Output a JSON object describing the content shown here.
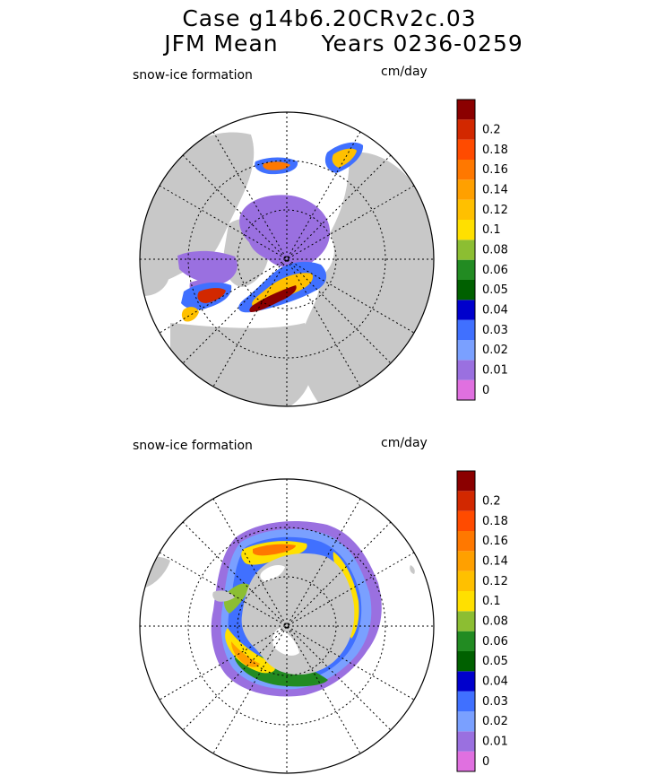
{
  "header": {
    "line1": "Case g14b6.20CRv2c.03",
    "line2_left": "JFM Mean",
    "line2_right": "Years 0236-0259"
  },
  "colors": {
    "land": "#c8c8c8",
    "levels": [
      "#e070e0",
      "#9a70e0",
      "#7aa0ff",
      "#4070ff",
      "#0000cc",
      "#006000",
      "#228b22",
      "#8cbe32",
      "#ffe000",
      "#ffc000",
      "#ffa000",
      "#ff7800",
      "#ff4b00",
      "#d22800",
      "#8b0000"
    ]
  },
  "chart_data": [
    {
      "type": "heatmap",
      "projection": "north-polar-stereographic",
      "title": "snow-ice formation",
      "units": "cm/day",
      "colorbar_levels": [
        "0",
        "0.01",
        "0.02",
        "0.03",
        "0.04",
        "0.05",
        "0.06",
        "0.08",
        "0.1",
        "0.12",
        "0.14",
        "0.16",
        "0.18",
        "0.2"
      ],
      "colorbar_values": [
        0,
        0.01,
        0.02,
        0.03,
        0.04,
        0.05,
        0.06,
        0.08,
        0.1,
        0.12,
        0.14,
        0.16,
        0.18,
        0.2
      ],
      "hemisphere": "north"
    },
    {
      "type": "heatmap",
      "projection": "south-polar-stereographic",
      "title": "snow-ice formation",
      "units": "cm/day",
      "colorbar_levels": [
        "0",
        "0.01",
        "0.02",
        "0.03",
        "0.04",
        "0.05",
        "0.06",
        "0.08",
        "0.1",
        "0.12",
        "0.14",
        "0.16",
        "0.18",
        "0.2"
      ],
      "colorbar_values": [
        0,
        0.01,
        0.02,
        0.03,
        0.04,
        0.05,
        0.06,
        0.08,
        0.1,
        0.12,
        0.14,
        0.16,
        0.18,
        0.2
      ],
      "hemisphere": "south"
    }
  ]
}
